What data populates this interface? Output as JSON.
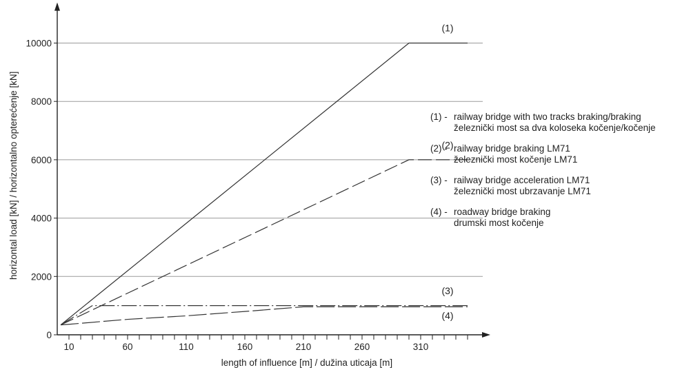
{
  "chart_data": {
    "type": "line",
    "xlabel": "length of influence [m] / dužina uticaja [m]",
    "ylabel": "horizontal load [kN] / horizontalno opterećenje [kN]",
    "x_ticks": [
      10,
      60,
      110,
      160,
      210,
      260,
      310
    ],
    "x_minor_ticks": [
      20,
      30,
      40,
      50,
      70,
      80,
      90,
      100,
      120,
      130,
      140,
      150,
      170,
      180,
      190,
      200,
      220,
      230,
      240,
      250,
      270,
      280,
      290,
      300,
      320,
      330,
      340,
      350
    ],
    "y_ticks": [
      0,
      2000,
      4000,
      6000,
      8000,
      10000
    ],
    "xlim": [
      0,
      360
    ],
    "ylim": [
      0,
      11200
    ],
    "grid": "horizontal",
    "series": [
      {
        "name": "(1)",
        "style": "solid",
        "x": [
          3,
          300,
          350
        ],
        "y": [
          340,
          10000,
          10000
        ]
      },
      {
        "name": "(2)",
        "style": "dashed",
        "x": [
          3,
          300,
          350
        ],
        "y": [
          340,
          6000,
          6000
        ]
      },
      {
        "name": "(3)",
        "style": "dashdot",
        "x": [
          3,
          30,
          350
        ],
        "y": [
          340,
          1000,
          1000
        ]
      },
      {
        "name": "(4)",
        "style": "longdash",
        "x": [
          3,
          10,
          60,
          110,
          160,
          210,
          350
        ],
        "y": [
          340,
          360,
          530,
          650,
          800,
          960,
          960
        ]
      }
    ],
    "curve_labels": [
      {
        "text": "(1)",
        "x": 330,
        "y": 10400
      },
      {
        "text": "(2)",
        "x": 330,
        "y": 6390
      },
      {
        "text": "(3)",
        "x": 330,
        "y": 1390
      },
      {
        "text": "(4)",
        "x": 330,
        "y": 540
      }
    ],
    "legend": [
      {
        "code": "(1) -",
        "lines": [
          "railway bridge with two tracks braking/braking",
          "železnički most sa dva koloseka kočenje/kočenje"
        ]
      },
      {
        "code": "(2) -",
        "lines": [
          "railway bridge braking LM71",
          "železnički most kočenje LM71"
        ]
      },
      {
        "code": "(3) -",
        "lines": [
          "railway bridge acceleration LM71",
          "železnički most ubrzavanje LM71"
        ]
      },
      {
        "code": "(4) -",
        "lines": [
          "roadway bridge braking",
          "drumski most kočenje"
        ]
      }
    ]
  }
}
